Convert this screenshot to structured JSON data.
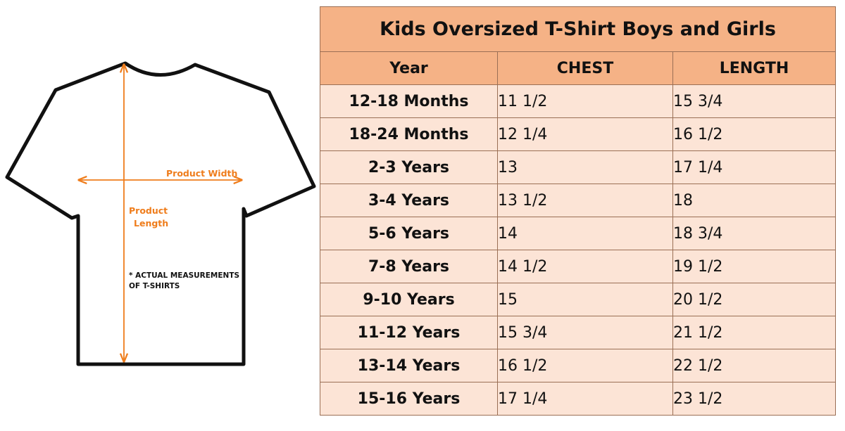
{
  "diagram": {
    "product_width_label": "Product Width",
    "product_length_line1": "Product",
    "product_length_line2": "Length",
    "note_line1": "* ACTUAL MEASUREMENTS",
    "note_line2": "OF T-SHIRTS",
    "accent_color": "#ef7d1c",
    "icon": "t-shirt-outline"
  },
  "table": {
    "title": "Kids Oversized T-Shirt Boys and Girls",
    "headers": [
      "Year",
      "CHEST",
      "LENGTH"
    ],
    "header_color": "#f5b286",
    "row_color": "#fce4d6",
    "rows": [
      {
        "year": "12-18 Months",
        "chest": "11 1/2",
        "length": "15 3/4"
      },
      {
        "year": "18-24 Months",
        "chest": "12 1/4",
        "length": "16 1/2"
      },
      {
        "year": "2-3 Years",
        "chest": "13",
        "length": "17 1/4"
      },
      {
        "year": "3-4 Years",
        "chest": "13 1/2",
        "length": "18"
      },
      {
        "year": "5-6 Years",
        "chest": "14",
        "length": "18 3/4"
      },
      {
        "year": "7-8 Years",
        "chest": "14 1/2",
        "length": "19 1/2"
      },
      {
        "year": "9-10 Years",
        "chest": "15",
        "length": "20 1/2"
      },
      {
        "year": "11-12 Years",
        "chest": "15 3/4",
        "length": "21 1/2"
      },
      {
        "year": "13-14 Years",
        "chest": "16 1/2",
        "length": "22 1/2"
      },
      {
        "year": "15-16 Years",
        "chest": "17 1/4",
        "length": "23 1/2"
      }
    ]
  }
}
